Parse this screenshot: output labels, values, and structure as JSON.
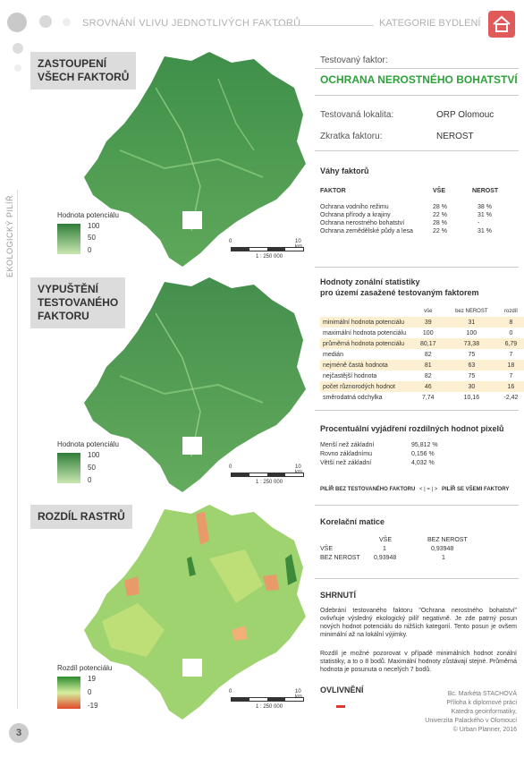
{
  "header": {
    "title": "SROVNÁNÍ VLIVU JEDNOTLIVÝCH FAKTORŮ",
    "category": "KATEGORIE BYDLENÍ",
    "side_label": "EKOLOGICKÝ PILÍŘ",
    "page_number": "3",
    "home_icon": "home-icon"
  },
  "panels": [
    {
      "title_line1": "ZASTOUPENÍ",
      "title_line2": "VŠECH FAKTORŮ",
      "title_line3": "",
      "legend_title": "Hodnota potenciálu",
      "legend_max": "100",
      "legend_mid": "50",
      "legend_min": "0",
      "scale_0": "0",
      "scale_10": "10 km",
      "scale_ratio": "1 : 250 000"
    },
    {
      "title_line1": "VYPUŠTĚNÍ",
      "title_line2": "TESTOVANÉHO",
      "title_line3": "FAKTORU",
      "legend_title": "Hodnota potenciálu",
      "legend_max": "100",
      "legend_mid": "50",
      "legend_min": "0",
      "scale_0": "0",
      "scale_10": "10 km",
      "scale_ratio": "1 : 250 000"
    },
    {
      "title_line1": "ROZDÍL RASTRŮ",
      "title_line2": "",
      "title_line3": "",
      "legend_title": "Rozdíl potenciálu",
      "legend_max": "19",
      "legend_mid": "0",
      "legend_min": "-19",
      "scale_0": "0",
      "scale_10": "10 km",
      "scale_ratio": "1 : 250 000"
    }
  ],
  "factor": {
    "label": "Testovaný faktor:",
    "name": "OCHRANA NEROSTNÉHO BOHATSTVÍ",
    "locality_label": "Testovaná lokalita:",
    "locality": "ORP Olomouc",
    "abbr_label": "Zkratka faktoru:",
    "abbr": "NEROST"
  },
  "weights": {
    "title": "Váhy faktorů",
    "col_factor": "FAKTOR",
    "col_all": "VŠE",
    "col_nerost": "NEROST",
    "rows": [
      {
        "name": "Ochrana vodního režimu",
        "all": "28 %",
        "nerost": "38 %"
      },
      {
        "name": "Ochrana přírody a krajiny",
        "all": "22 %",
        "nerost": "31 %"
      },
      {
        "name": "Ochrana nerostného bohatství",
        "all": "28 %",
        "nerost": "-"
      },
      {
        "name": "Ochrana zemědělské půdy a lesa",
        "all": "22 %",
        "nerost": "31 %"
      }
    ]
  },
  "zonal": {
    "title_line1": "Hodnoty zonální statistiky",
    "title_line2": "pro území zasažené testovaným faktorem",
    "col_all": "vše",
    "col_nerost": "bez NEROST",
    "col_diff": "rozdíl",
    "rows": [
      {
        "name": "minimální hodnota potenciálu",
        "all": "39",
        "nerost": "31",
        "diff": "8"
      },
      {
        "name": "maximální hodnota potenciálu",
        "all": "100",
        "nerost": "100",
        "diff": "0"
      },
      {
        "name": "průměrná hodnota potenciálu",
        "all": "80,17",
        "nerost": "73,38",
        "diff": "6,79"
      },
      {
        "name": "medián",
        "all": "82",
        "nerost": "75",
        "diff": "7"
      },
      {
        "name": "nejméně častá hodnota",
        "all": "81",
        "nerost": "63",
        "diff": "18"
      },
      {
        "name": "nejčastější hodnota",
        "all": "82",
        "nerost": "75",
        "diff": "7"
      },
      {
        "name": "počet různorodých hodnot",
        "all": "46",
        "nerost": "30",
        "diff": "16"
      },
      {
        "name": "směrodatná odchylka",
        "all": "7,74",
        "nerost": "10,16",
        "diff": "-2,42"
      }
    ]
  },
  "percent": {
    "title": "Procentuální vyjádření rozdílných hodnot pixelů",
    "rows": [
      {
        "name": "Menší než základní",
        "value": "95,812 %"
      },
      {
        "name": "Rovno základnímu",
        "value": "0,156 %"
      },
      {
        "name": "Větší než základní",
        "value": "4,032 %"
      }
    ],
    "compare_left": "PILÍŘ BEZ TESTOVANÉHO FAKTORU",
    "compare_mid": "< | = | >",
    "compare_right": "PILÍŘ SE VŠEMI FAKTORY"
  },
  "correlation": {
    "title": "Korelační matice",
    "col_all": "VŠE",
    "col_nerost": "BEZ NEROST",
    "row1_name": "VŠE",
    "row1_a": "1",
    "row1_b": "0,93948",
    "row2_name": "BEZ NEROST",
    "row2_a": "0,93948",
    "row2_b": "1"
  },
  "summary": {
    "title": "SHRNUTÍ",
    "p1": "Odebrání testovaného faktoru \"Ochrana nerostného bohatství\" ovlivňuje výsledný ekologický pilíř negativně. Je zde patrný posun nových hodnot potenciálu do nižších kategorií. Tento posun je ovšem minimální až na lokální výjimky.",
    "p2": "Rozdíl je možné pozorovat v případě minimálních hodnot zonální statistiky, a to o 8 bodů. Maximální hodnoty zůstávají stejné. Průměrná hodnota je posunuta o necelých 7 bodů."
  },
  "influence": {
    "title": "OVLIVNĚNÍ"
  },
  "footer": {
    "line1": "Bc. Markéta STACHOVÁ",
    "line2": "Příloha k diplomové práci",
    "line3": "Katedra geoinformatiky,",
    "line4": "Univerzita Palackého v Olomouci",
    "line5": "© Urban Planner, 2016"
  },
  "colors": {
    "accent_green": "#2ea23a",
    "home_red": "#e05a5a",
    "table_alt": "#fdf0d2"
  }
}
